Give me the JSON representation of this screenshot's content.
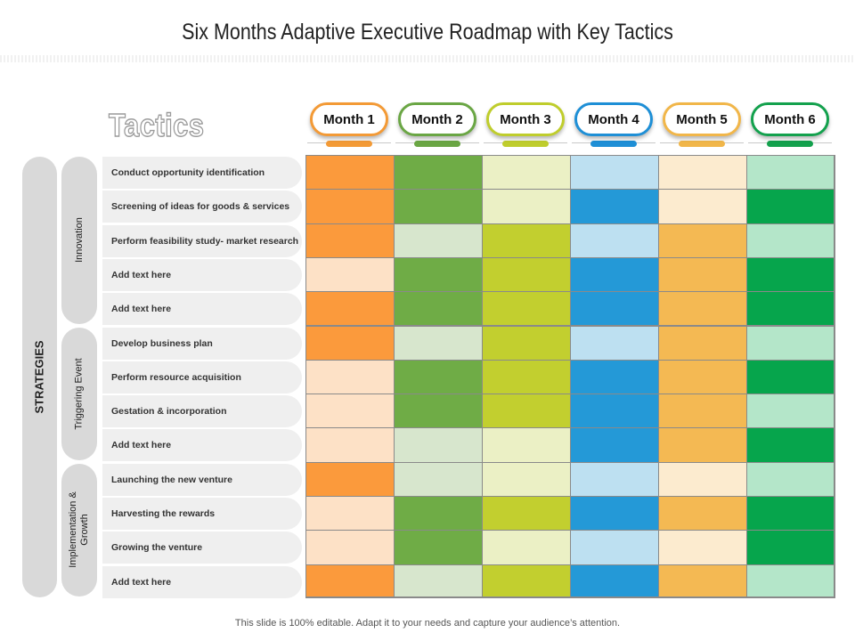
{
  "title": "Six Months Adaptive Executive Roadmap with Key Tactics",
  "tactics_heading": "Tactics",
  "strategies_label": "STRATEGIES",
  "months": [
    {
      "label": "Month 1",
      "color": "#f39a36"
    },
    {
      "label": "Month 2",
      "color": "#6aa644"
    },
    {
      "label": "Month 3",
      "color": "#bfcd2c"
    },
    {
      "label": "Month 4",
      "color": "#1e8fd6"
    },
    {
      "label": "Month 5",
      "color": "#f1b649"
    },
    {
      "label": "Month 6",
      "color": "#13a14d"
    }
  ],
  "groups": [
    {
      "label": "Innovation",
      "rows": 5
    },
    {
      "label": "Triggering Event",
      "rows": 4
    },
    {
      "label": "Implementation & Growth",
      "rows": 4
    }
  ],
  "tactics": [
    "Conduct opportunity identification",
    "Screening of ideas for goods & services",
    "Perform feasibility study- market research",
    "Add text here",
    "Add text here",
    "Develop business plan",
    "Perform resource acquisition",
    "Gestation & incorporation",
    "Add text here",
    "Launching the new venture",
    "Harvesting the rewards",
    "Growing the venture",
    "Add text here"
  ],
  "palette": {
    "dark": [
      "#fb9a3c",
      "#6fac46",
      "#c2cf2f",
      "#2499d7",
      "#f4b953",
      "#06a54c"
    ],
    "light": [
      "#fde1c6",
      "#d7e6cd",
      "#ebf0c5",
      "#bde0f1",
      "#fcebcf",
      "#b4e6c9"
    ]
  },
  "grid": [
    [
      1,
      1,
      0,
      0,
      0,
      0
    ],
    [
      1,
      1,
      0,
      1,
      0,
      1
    ],
    [
      1,
      0,
      1,
      0,
      1,
      0
    ],
    [
      0,
      1,
      1,
      1,
      1,
      1
    ],
    [
      1,
      1,
      1,
      1,
      1,
      1
    ],
    [
      1,
      0,
      1,
      0,
      1,
      0
    ],
    [
      0,
      1,
      1,
      1,
      1,
      1
    ],
    [
      0,
      1,
      1,
      1,
      1,
      0
    ],
    [
      0,
      0,
      0,
      1,
      1,
      1
    ],
    [
      1,
      0,
      0,
      0,
      0,
      0
    ],
    [
      0,
      1,
      1,
      1,
      1,
      1
    ],
    [
      0,
      1,
      0,
      0,
      0,
      1
    ],
    [
      1,
      0,
      1,
      1,
      1,
      0
    ]
  ],
  "footer": "This slide is 100% editable. Adapt it to your needs and capture your audience’s attention."
}
